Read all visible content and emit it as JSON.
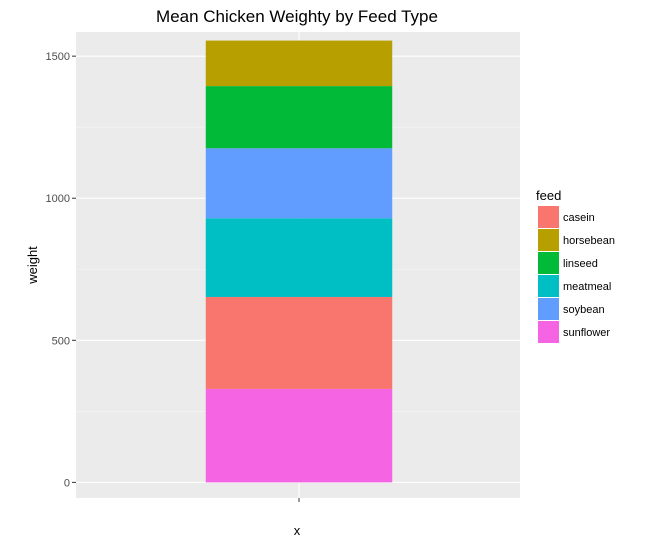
{
  "chart_data": {
    "type": "bar",
    "stacked": true,
    "title": "Mean Chicken Weighty by Feed Type",
    "xlabel": "x",
    "ylabel": "weight",
    "categories": [
      ""
    ],
    "ylim": [
      -55,
      1585
    ],
    "yticks": [
      0,
      500,
      1000,
      1500
    ],
    "grid": true,
    "legend_position": "right",
    "legend_title": "feed",
    "series": [
      {
        "name": "casein",
        "values": [
          323.6
        ],
        "color": "#F8766D"
      },
      {
        "name": "horsebean",
        "values": [
          160.2
        ],
        "color": "#B79F00"
      },
      {
        "name": "linseed",
        "values": [
          218.8
        ],
        "color": "#00BA38"
      },
      {
        "name": "meatmeal",
        "values": [
          276.9
        ],
        "color": "#00BFC4"
      },
      {
        "name": "soybean",
        "values": [
          246.4
        ],
        "color": "#619CFF"
      },
      {
        "name": "sunflower",
        "values": [
          328.9
        ],
        "color": "#F564E3"
      }
    ],
    "stack_order_bottom_to_top": [
      "sunflower",
      "casein",
      "meatmeal",
      "soybean",
      "linseed",
      "horsebean"
    ]
  }
}
